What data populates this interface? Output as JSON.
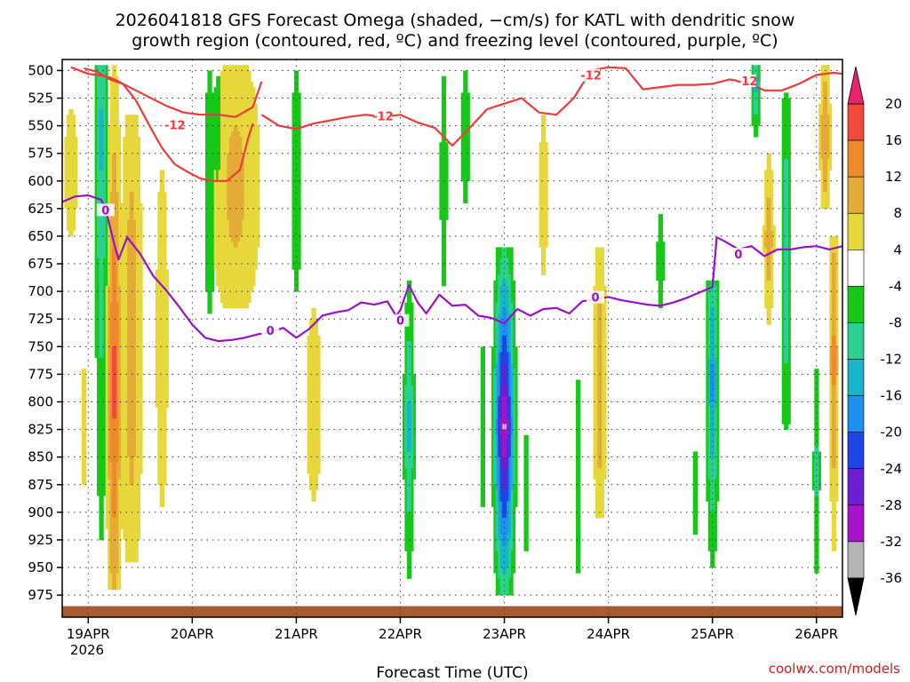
{
  "chart_data": {
    "type": "heatmap",
    "title_line1": "2026041818 GFS Forecast Omega (shaded, −cm/s) for KATL with dendritic snow",
    "title_line2": "growth region (contoured, red, ºC) and freezing level (contoured, purple, ºC)",
    "xlabel": "Forecast Time (UTC)",
    "credit": "coolwx.com/models",
    "year_label": "2026",
    "x_ticks": [
      {
        "label": "19APR",
        "hour": 6
      },
      {
        "label": "20APR",
        "hour": 30
      },
      {
        "label": "21APR",
        "hour": 54
      },
      {
        "label": "22APR",
        "hour": 78
      },
      {
        "label": "23APR",
        "hour": 102
      },
      {
        "label": "24APR",
        "hour": 126
      },
      {
        "label": "25APR",
        "hour": 150
      },
      {
        "label": "26APR",
        "hour": 174
      }
    ],
    "xlim_hours": [
      0,
      180
    ],
    "ylim_hpa": [
      490,
      995
    ],
    "y_ticks": [
      500,
      525,
      550,
      575,
      600,
      625,
      650,
      675,
      700,
      725,
      750,
      775,
      800,
      825,
      850,
      875,
      900,
      925,
      950,
      975
    ],
    "colorbar": {
      "ticks": [
        20,
        16,
        12,
        8,
        4,
        -4,
        -8,
        -12,
        -16,
        -20,
        -24,
        -28,
        -32,
        -36
      ],
      "bins": [
        {
          "lo": 20,
          "hi": 99,
          "color": "#e8246e"
        },
        {
          "lo": 16,
          "hi": 20,
          "color": "#f04a3a"
        },
        {
          "lo": 12,
          "hi": 16,
          "color": "#ee8a2c"
        },
        {
          "lo": 8,
          "hi": 12,
          "color": "#e4ac36"
        },
        {
          "lo": 4,
          "hi": 8,
          "color": "#e6d83a"
        },
        {
          "lo": -4,
          "hi": 4,
          "color": "#ffffff"
        },
        {
          "lo": -8,
          "hi": -4,
          "color": "#18c818"
        },
        {
          "lo": -12,
          "hi": -8,
          "color": "#2ad090"
        },
        {
          "lo": -16,
          "hi": -12,
          "color": "#18b4c8"
        },
        {
          "lo": -20,
          "hi": -16,
          "color": "#1e90f0"
        },
        {
          "lo": -24,
          "hi": -20,
          "color": "#1e46e6"
        },
        {
          "lo": -28,
          "hi": -24,
          "color": "#6c1ed2"
        },
        {
          "lo": -32,
          "hi": -28,
          "color": "#a812c8"
        },
        {
          "lo": -36,
          "hi": -32,
          "color": "#b4b4b4"
        },
        {
          "lo": -99,
          "hi": -36,
          "color": "#000000"
        }
      ]
    },
    "omega_features": [
      {
        "hour": 12,
        "p_top": 495,
        "p_bot": 965,
        "peak": 18,
        "width_h": 1.6,
        "shape": "jet",
        "p_peak": 780
      },
      {
        "hour": 9,
        "p_top": 495,
        "p_bot": 960,
        "peak": -13,
        "width_h": 1.4,
        "shape": "jet",
        "p_peak": 560
      },
      {
        "hour": 2,
        "p_top": 500,
        "p_bot": 680,
        "peak": 5,
        "width_h": 3.0,
        "shape": "flat",
        "p_peak": 560
      },
      {
        "hour": 5,
        "p_top": 740,
        "p_bot": 900,
        "peak": 5,
        "width_h": 1.5,
        "shape": "flat",
        "p_peak": 820
      },
      {
        "hour": 16,
        "p_top": 540,
        "p_bot": 940,
        "peak": 10,
        "width_h": 2.5,
        "shape": "flat",
        "p_peak": 760
      },
      {
        "hour": 23,
        "p_top": 560,
        "p_bot": 920,
        "peak": 6,
        "width_h": 2.0,
        "shape": "flat",
        "p_peak": 740
      },
      {
        "hour": 34,
        "p_top": 495,
        "p_bot": 720,
        "peak": -7,
        "width_h": 1.5,
        "shape": "flat",
        "p_peak": 560
      },
      {
        "hour": 40,
        "p_top": 495,
        "p_bot": 710,
        "peak": 9,
        "width_h": 6.0,
        "shape": "flat",
        "p_peak": 560
      },
      {
        "hour": 36,
        "p_top": 500,
        "p_bot": 620,
        "peak": -7,
        "width_h": 1.5,
        "shape": "flat",
        "p_peak": 540
      },
      {
        "hour": 54,
        "p_top": 495,
        "p_bot": 700,
        "peak": -7,
        "width_h": 1.5,
        "shape": "flat",
        "p_peak": 560
      },
      {
        "hour": 58,
        "p_top": 700,
        "p_bot": 900,
        "peak": 6,
        "width_h": 2.5,
        "shape": "flat",
        "p_peak": 780
      },
      {
        "hour": 80,
        "p_top": 690,
        "p_bot": 965,
        "peak": -14,
        "width_h": 1.2,
        "shape": "jet",
        "p_peak": 820
      },
      {
        "hour": 88,
        "p_top": 495,
        "p_bot": 700,
        "peak": -7,
        "width_h": 1.0,
        "shape": "flat",
        "p_peak": 560
      },
      {
        "hour": 93,
        "p_top": 495,
        "p_bot": 620,
        "peak": -7,
        "width_h": 1.2,
        "shape": "flat",
        "p_peak": 540
      },
      {
        "hour": 102,
        "p_top": 660,
        "p_bot": 970,
        "peak": -33,
        "width_h": 2.0,
        "shape": "jet",
        "p_peak": 820
      },
      {
        "hour": 97,
        "p_top": 720,
        "p_bot": 920,
        "peak": -6,
        "width_h": 0.7,
        "shape": "flat",
        "p_peak": 820
      },
      {
        "hour": 107,
        "p_top": 810,
        "p_bot": 950,
        "peak": -6,
        "width_h": 0.7,
        "shape": "flat",
        "p_peak": 880
      },
      {
        "hour": 111,
        "p_top": 500,
        "p_bot": 720,
        "peak": 5,
        "width_h": 2.0,
        "shape": "flat",
        "p_peak": 580
      },
      {
        "hour": 119,
        "p_top": 770,
        "p_bot": 960,
        "peak": -7,
        "width_h": 0.8,
        "shape": "flat",
        "p_peak": 860
      },
      {
        "hour": 124,
        "p_top": 660,
        "p_bot": 900,
        "peak": 10,
        "width_h": 1.5,
        "shape": "flat",
        "p_peak": 780
      },
      {
        "hour": 138,
        "p_top": 620,
        "p_bot": 720,
        "peak": -6,
        "width_h": 1.2,
        "shape": "flat",
        "p_peak": 670
      },
      {
        "hour": 150,
        "p_top": 690,
        "p_bot": 945,
        "peak": -18,
        "width_h": 1.3,
        "shape": "jet",
        "p_peak": 780
      },
      {
        "hour": 146,
        "p_top": 830,
        "p_bot": 930,
        "peak": -6,
        "width_h": 0.7,
        "shape": "flat",
        "p_peak": 880
      },
      {
        "hour": 160,
        "p_top": 495,
        "p_bot": 560,
        "peak": -14,
        "width_h": 1.0,
        "shape": "jet",
        "p_peak": 510
      },
      {
        "hour": 163,
        "p_top": 560,
        "p_bot": 740,
        "peak": 12,
        "width_h": 1.2,
        "shape": "jet",
        "p_peak": 650
      },
      {
        "hour": 167,
        "p_top": 520,
        "p_bot": 820,
        "peak": -10,
        "width_h": 1.2,
        "shape": "flat",
        "p_peak": 720
      },
      {
        "hour": 176,
        "p_top": 495,
        "p_bot": 620,
        "peak": 12,
        "width_h": 1.2,
        "shape": "flat",
        "p_peak": 540
      },
      {
        "hour": 178,
        "p_top": 650,
        "p_bot": 945,
        "peak": 14,
        "width_h": 1.0,
        "shape": "jet",
        "p_peak": 760
      },
      {
        "hour": 174,
        "p_top": 770,
        "p_bot": 950,
        "peak": -9,
        "width_h": 0.8,
        "shape": "flat",
        "p_peak": 860
      }
    ],
    "freezing_level_0C": {
      "color": "#9a10c8",
      "label": "0",
      "hours": [
        0,
        3,
        6,
        9,
        10,
        12,
        13,
        15,
        18,
        21,
        24,
        27,
        30,
        33,
        36,
        39,
        42,
        45,
        48,
        51,
        54,
        57,
        60,
        63,
        66,
        69,
        72,
        75,
        77,
        78,
        80,
        82,
        84,
        87,
        90,
        93,
        96,
        99,
        102,
        105,
        108,
        111,
        114,
        117,
        120,
        123,
        126,
        129,
        132,
        135,
        138,
        141,
        144,
        147,
        150,
        151,
        153,
        156,
        159,
        162,
        165,
        168,
        171,
        174,
        177,
        180
      ],
      "p_hpa": [
        619,
        614,
        613,
        617,
        625,
        657,
        671,
        651,
        666,
        686,
        699,
        714,
        730,
        742,
        745,
        744,
        742,
        739,
        737,
        733,
        742,
        734,
        722,
        719,
        717,
        710,
        712,
        709,
        722,
        717,
        694,
        710,
        720,
        703,
        713,
        712,
        722,
        724,
        729,
        716,
        722,
        716,
        715,
        720,
        709,
        707,
        705,
        708,
        710,
        712,
        713,
        710,
        706,
        701,
        696,
        651,
        655,
        662,
        659,
        668,
        662,
        662,
        660,
        659,
        662,
        659
      ]
    },
    "dgz_minus12C": {
      "color": "#f03a3a",
      "label": "-12",
      "segments": [
        {
          "hours": [
            5,
            8,
            11,
            14,
            17,
            20,
            23,
            26,
            29,
            32,
            35,
            38,
            41,
            43,
            44
          ],
          "p_hpa": [
            498,
            501,
            508,
            512,
            527,
            549,
            570,
            585,
            592,
            598,
            600,
            600,
            590,
            560,
            548
          ]
        },
        {
          "hours": [
            2,
            6,
            10,
            12,
            15,
            19,
            24,
            28,
            32,
            36,
            40,
            44,
            46
          ],
          "p_hpa": [
            497,
            503,
            505,
            508,
            514,
            522,
            532,
            538,
            540,
            540,
            542,
            533,
            510
          ]
        },
        {
          "hours": [
            46,
            50,
            54,
            58,
            62,
            66,
            70,
            74,
            78,
            82,
            86,
            90,
            94,
            98,
            102,
            106,
            110,
            114,
            118,
            122,
            126,
            130,
            134,
            138,
            142,
            146,
            150,
            154,
            158,
            162,
            166,
            170,
            174,
            178,
            180
          ],
          "p_hpa": [
            540,
            550,
            553,
            548,
            545,
            542,
            540,
            542,
            540,
            547,
            552,
            568,
            552,
            535,
            530,
            525,
            538,
            540,
            525,
            500,
            497,
            498,
            517,
            515,
            513,
            513,
            512,
            508,
            511,
            518,
            518,
            512,
            504,
            502,
            503
          ]
        }
      ]
    },
    "terrain_color": "#a85a30",
    "terrain_top_hpa": 985
  }
}
